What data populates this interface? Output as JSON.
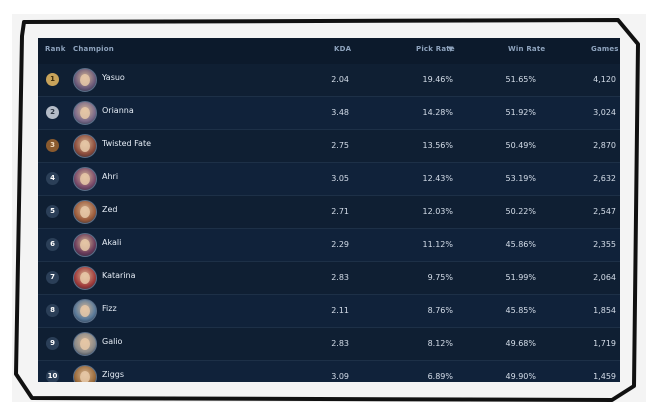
{
  "table": {
    "headers": {
      "rank": "Rank",
      "champion": "Champion",
      "kda": "KDA",
      "pick_rate": "Pick Rate",
      "win_rate": "Win Rate",
      "games": "Games"
    },
    "sort_caret": "▼",
    "rows": [
      {
        "rank": "1",
        "champion": "Yasuo",
        "kda": "2.04",
        "pick_rate": "19.46%",
        "win_rate": "51.65%",
        "games": "4,120",
        "avatar_color": "#6b5a7a"
      },
      {
        "rank": "2",
        "champion": "Orianna",
        "kda": "3.48",
        "pick_rate": "14.28%",
        "win_rate": "51.92%",
        "games": "3,024",
        "avatar_color": "#7a6a8a"
      },
      {
        "rank": "3",
        "champion": "Twisted Fate",
        "kda": "2.75",
        "pick_rate": "13.56%",
        "win_rate": "50.49%",
        "games": "2,870",
        "avatar_color": "#8a4a3a"
      },
      {
        "rank": "4",
        "champion": "Ahri",
        "kda": "3.05",
        "pick_rate": "12.43%",
        "win_rate": "53.19%",
        "games": "2,632",
        "avatar_color": "#7a4a6a"
      },
      {
        "rank": "5",
        "champion": "Zed",
        "kda": "2.71",
        "pick_rate": "12.03%",
        "win_rate": "50.22%",
        "games": "2,547",
        "avatar_color": "#9a5a3a"
      },
      {
        "rank": "6",
        "champion": "Akali",
        "kda": "2.29",
        "pick_rate": "11.12%",
        "win_rate": "45.86%",
        "games": "2,355",
        "avatar_color": "#6a3a5a"
      },
      {
        "rank": "7",
        "champion": "Katarina",
        "kda": "2.83",
        "pick_rate": "9.75%",
        "win_rate": "51.99%",
        "games": "2,064",
        "avatar_color": "#a03a3a"
      },
      {
        "rank": "8",
        "champion": "Fizz",
        "kda": "2.11",
        "pick_rate": "8.76%",
        "win_rate": "45.85%",
        "games": "1,854",
        "avatar_color": "#5a7a9a"
      },
      {
        "rank": "9",
        "champion": "Galio",
        "kda": "2.83",
        "pick_rate": "8.12%",
        "win_rate": "49.68%",
        "games": "1,719",
        "avatar_color": "#8a8a8a"
      },
      {
        "rank": "10",
        "champion": "Ziggs",
        "kda": "3.09",
        "pick_rate": "6.89%",
        "win_rate": "49.90%",
        "games": "1,459",
        "avatar_color": "#9a6a3a"
      }
    ]
  }
}
